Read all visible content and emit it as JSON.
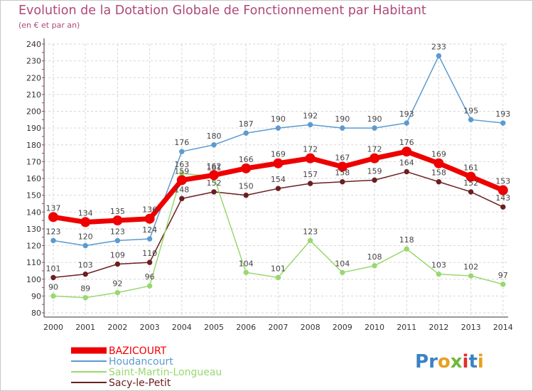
{
  "chart_data": {
    "type": "line",
    "title": "Evolution de la Dotation Globale de Fonctionnement par Habitant",
    "subtitle": "(en € et par an)",
    "xlabel": "",
    "ylabel": "",
    "ylim": [
      80,
      240
    ],
    "yticks": [
      80,
      90,
      100,
      110,
      120,
      130,
      140,
      150,
      160,
      170,
      180,
      190,
      200,
      210,
      220,
      230,
      240
    ],
    "categories": [
      "2000",
      "2001",
      "2002",
      "2003",
      "2004",
      "2005",
      "2006",
      "2007",
      "2008",
      "2009",
      "2010",
      "2011",
      "2012",
      "2013",
      "2014"
    ],
    "series": [
      {
        "name": "Sacy-le-Petit",
        "color": "#6b1f1f",
        "values": [
          101,
          103,
          109,
          110,
          148,
          152,
          150,
          154,
          157,
          158,
          159,
          164,
          158,
          152,
          143
        ]
      },
      {
        "name": "Saint-Martin-Longueau",
        "color": "#99d86f",
        "values": [
          90,
          89,
          92,
          96,
          163,
          161,
          104,
          101,
          123,
          104,
          108,
          118,
          103,
          102,
          97
        ]
      },
      {
        "name": "Houdancourt",
        "color": "#5b9bd0",
        "values": [
          123,
          120,
          123,
          124,
          176,
          180,
          187,
          190,
          192,
          190,
          190,
          193,
          233,
          195,
          193
        ]
      },
      {
        "name": "BAZICOURT",
        "color": "#ee0000",
        "values": [
          137,
          134,
          135,
          136,
          159,
          162,
          166,
          169,
          172,
          167,
          172,
          176,
          169,
          161,
          153
        ]
      }
    ],
    "legend": {
      "position": "bottom-left",
      "order": [
        "BAZICOURT",
        "Houdancourt",
        "Saint-Martin-Longueau",
        "Sacy-le-Petit"
      ]
    },
    "logo": "Proxiti"
  },
  "colors": {
    "title": "#b04878",
    "grid": "#d6d6d6",
    "axis": "#333333"
  }
}
